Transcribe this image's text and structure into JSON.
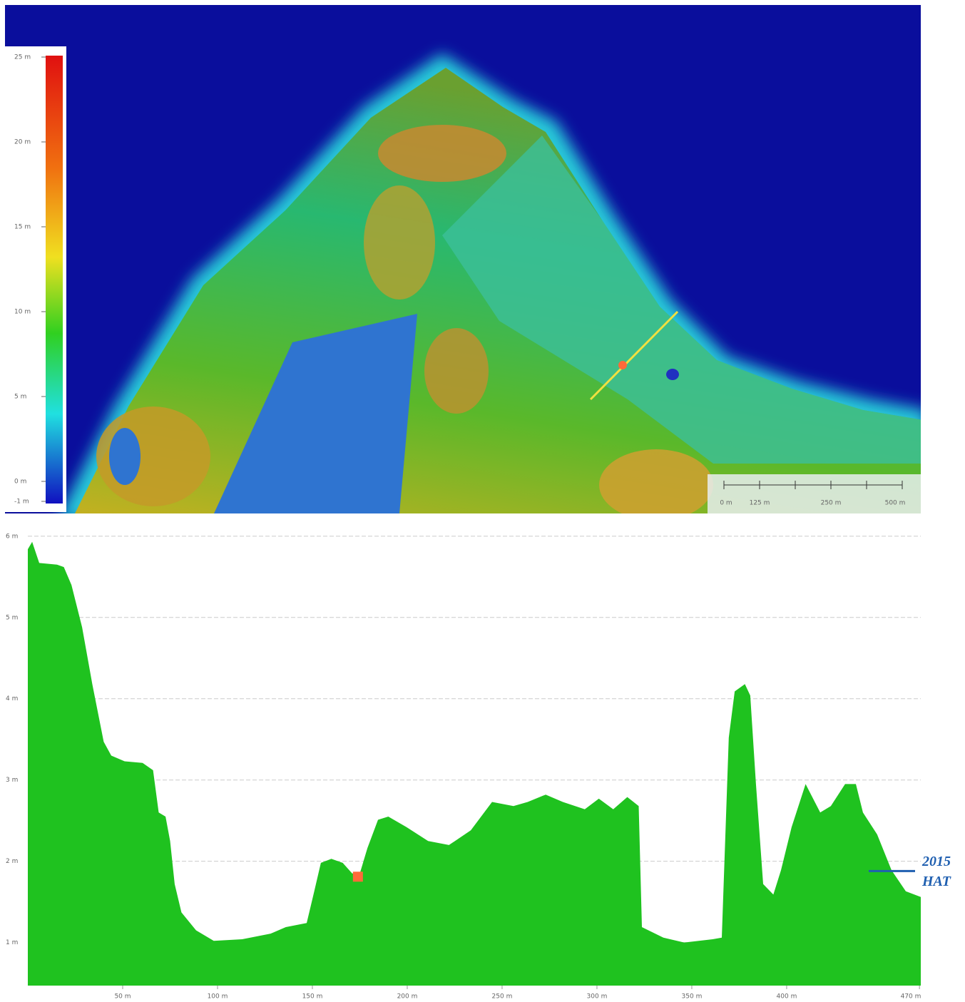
{
  "map": {
    "legend_labels": [
      "25 m",
      "20 m",
      "15 m",
      "10 m",
      "5 m",
      "0 m",
      "-1 m"
    ],
    "scale_labels": [
      "0 m",
      "125 m",
      "250 m",
      "500 m"
    ]
  },
  "chart_data": {
    "type": "area",
    "x": [
      0,
      2.3,
      6,
      15.4,
      19,
      23,
      28.6,
      34,
      40,
      44,
      51,
      60.5,
      66,
      69,
      72.6,
      75,
      77.4,
      81,
      88.7,
      98,
      113,
      128,
      136,
      147,
      151,
      154.5,
      160,
      166,
      171,
      175,
      179,
      184.6,
      190,
      199.6,
      211,
      222,
      233.5,
      244.7,
      256,
      263.5,
      273,
      282,
      293.6,
      301,
      308.6,
      316,
      322,
      323.7,
      335,
      346,
      361,
      365.8,
      369.5,
      372.6,
      378,
      380.8,
      383.8,
      387.6,
      393,
      397,
      402.6,
      410,
      417.7,
      423.3,
      430.8,
      436.5,
      440.2,
      447.7,
      455.3,
      462.8,
      470.7
    ],
    "values": [
      5.84,
      5.93,
      5.67,
      5.65,
      5.62,
      5.4,
      4.88,
      4.18,
      3.47,
      3.3,
      3.23,
      3.21,
      3.12,
      2.6,
      2.55,
      2.25,
      1.72,
      1.37,
      1.15,
      1.02,
      1.04,
      1.11,
      1.19,
      1.24,
      1.63,
      1.98,
      2.03,
      1.98,
      1.85,
      1.85,
      2.16,
      2.51,
      2.55,
      2.42,
      2.25,
      2.2,
      2.38,
      2.73,
      2.68,
      2.73,
      2.82,
      2.73,
      2.64,
      2.77,
      2.64,
      2.79,
      2.68,
      1.19,
      1.06,
      1.0,
      1.04,
      1.06,
      3.52,
      4.09,
      4.18,
      4.04,
      2.95,
      1.72,
      1.59,
      1.89,
      2.42,
      2.95,
      2.6,
      2.68,
      2.95,
      2.95,
      2.6,
      2.33,
      1.89,
      1.63,
      1.56
    ],
    "color": "#1fc21f",
    "xlim": [
      0,
      470.7
    ],
    "xticks": [
      {
        "value": 50,
        "label": "50 m"
      },
      {
        "value": 100,
        "label": "100 m"
      },
      {
        "value": 150,
        "label": "150 m"
      },
      {
        "value": 200,
        "label": "200 m"
      },
      {
        "value": 250,
        "label": "250 m"
      },
      {
        "value": 300,
        "label": "300 m"
      },
      {
        "value": 350,
        "label": "350 m"
      },
      {
        "value": 400,
        "label": "400 m"
      },
      {
        "value": 470,
        "label": "470 m"
      }
    ],
    "ylim": [
      0.47,
      6.06
    ],
    "yticks": [
      {
        "value": 1,
        "label": "1 m"
      },
      {
        "value": 2,
        "label": "2 m"
      },
      {
        "value": 3,
        "label": "3 m"
      },
      {
        "value": 4,
        "label": "4 m"
      },
      {
        "value": 5,
        "label": "5 m"
      },
      {
        "value": 6,
        "label": "6 m"
      }
    ],
    "grid": true,
    "marker": {
      "x": 174,
      "y": 1.81,
      "color": "#ff6a3a"
    },
    "reference_line": {
      "value": 1.88,
      "color": "#1f5fb0",
      "label_lines": [
        "2015",
        "HAT"
      ]
    }
  }
}
